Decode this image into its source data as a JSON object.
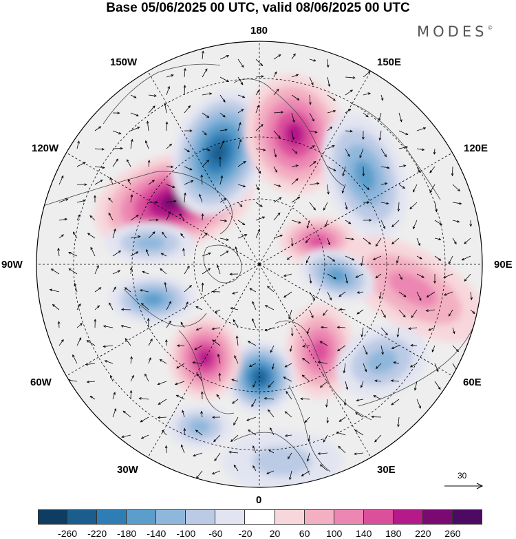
{
  "title": "Base 05/06/2025 00 UTC, valid 08/06/2025 00 UTC",
  "brand": {
    "name": "MODES",
    "mark": "©"
  },
  "longitude_labels": [
    {
      "id": "lon-180",
      "text": "180"
    },
    {
      "id": "lon-150e",
      "text": "150E"
    },
    {
      "id": "lon-120e",
      "text": "120E"
    },
    {
      "id": "lon-90e",
      "text": "90E"
    },
    {
      "id": "lon-60e",
      "text": "60E"
    },
    {
      "id": "lon-30e",
      "text": "30E"
    },
    {
      "id": "lon-0",
      "text": "0"
    },
    {
      "id": "lon-30w",
      "text": "30W"
    },
    {
      "id": "lon-60w",
      "text": "60W"
    },
    {
      "id": "lon-90w",
      "text": "90W"
    },
    {
      "id": "lon-120w",
      "text": "120W"
    },
    {
      "id": "lon-150w",
      "text": "150W"
    }
  ],
  "reference_vector": {
    "label": "30"
  },
  "colorbar": {
    "ticks": [
      "-260",
      "-220",
      "-180",
      "-140",
      "-100",
      "-60",
      "-20",
      "20",
      "60",
      "100",
      "140",
      "180",
      "220",
      "260"
    ],
    "colors": [
      "#0f3d62",
      "#1b5d8c",
      "#2e7db5",
      "#5b9dcb",
      "#8fb7dc",
      "#bccbe5",
      "#e2e4f1",
      "#ffffff",
      "#f7d7db",
      "#f3b0c2",
      "#ec86b2",
      "#dc4f9b",
      "#b5198a",
      "#7a0a72",
      "#4d0a63"
    ]
  },
  "map": {
    "projection": "north polar stereographic",
    "anomalies": [
      {
        "name": "anomaly-positive-alaska",
        "sign": "positive",
        "value": 260
      },
      {
        "name": "anomaly-negative-bering",
        "sign": "negative",
        "value": -220
      },
      {
        "name": "anomaly-positive-east-siberia",
        "sign": "positive",
        "value": 180
      },
      {
        "name": "anomaly-negative-yakutia",
        "sign": "negative",
        "value": -140
      },
      {
        "name": "anomaly-positive-central-siberia",
        "sign": "positive",
        "value": 140
      },
      {
        "name": "anomaly-positive-west-siberia",
        "sign": "positive",
        "value": 120
      },
      {
        "name": "anomaly-negative-ural",
        "sign": "negative",
        "value": -140
      },
      {
        "name": "anomaly-positive-scandinavia",
        "sign": "positive",
        "value": 140
      },
      {
        "name": "anomaly-negative-iceland",
        "sign": "negative",
        "value": -260
      },
      {
        "name": "anomaly-positive-greenland",
        "sign": "positive",
        "value": 180
      },
      {
        "name": "anomaly-negative-hudson",
        "sign": "negative",
        "value": -140
      },
      {
        "name": "anomaly-negative-canada",
        "sign": "negative",
        "value": -120
      },
      {
        "name": "anomaly-negative-atlantic",
        "sign": "negative",
        "value": -100
      },
      {
        "name": "anomaly-negative-europe",
        "sign": "negative",
        "value": -60
      },
      {
        "name": "anomaly-negative-caspian",
        "sign": "negative",
        "value": -100
      }
    ]
  }
}
